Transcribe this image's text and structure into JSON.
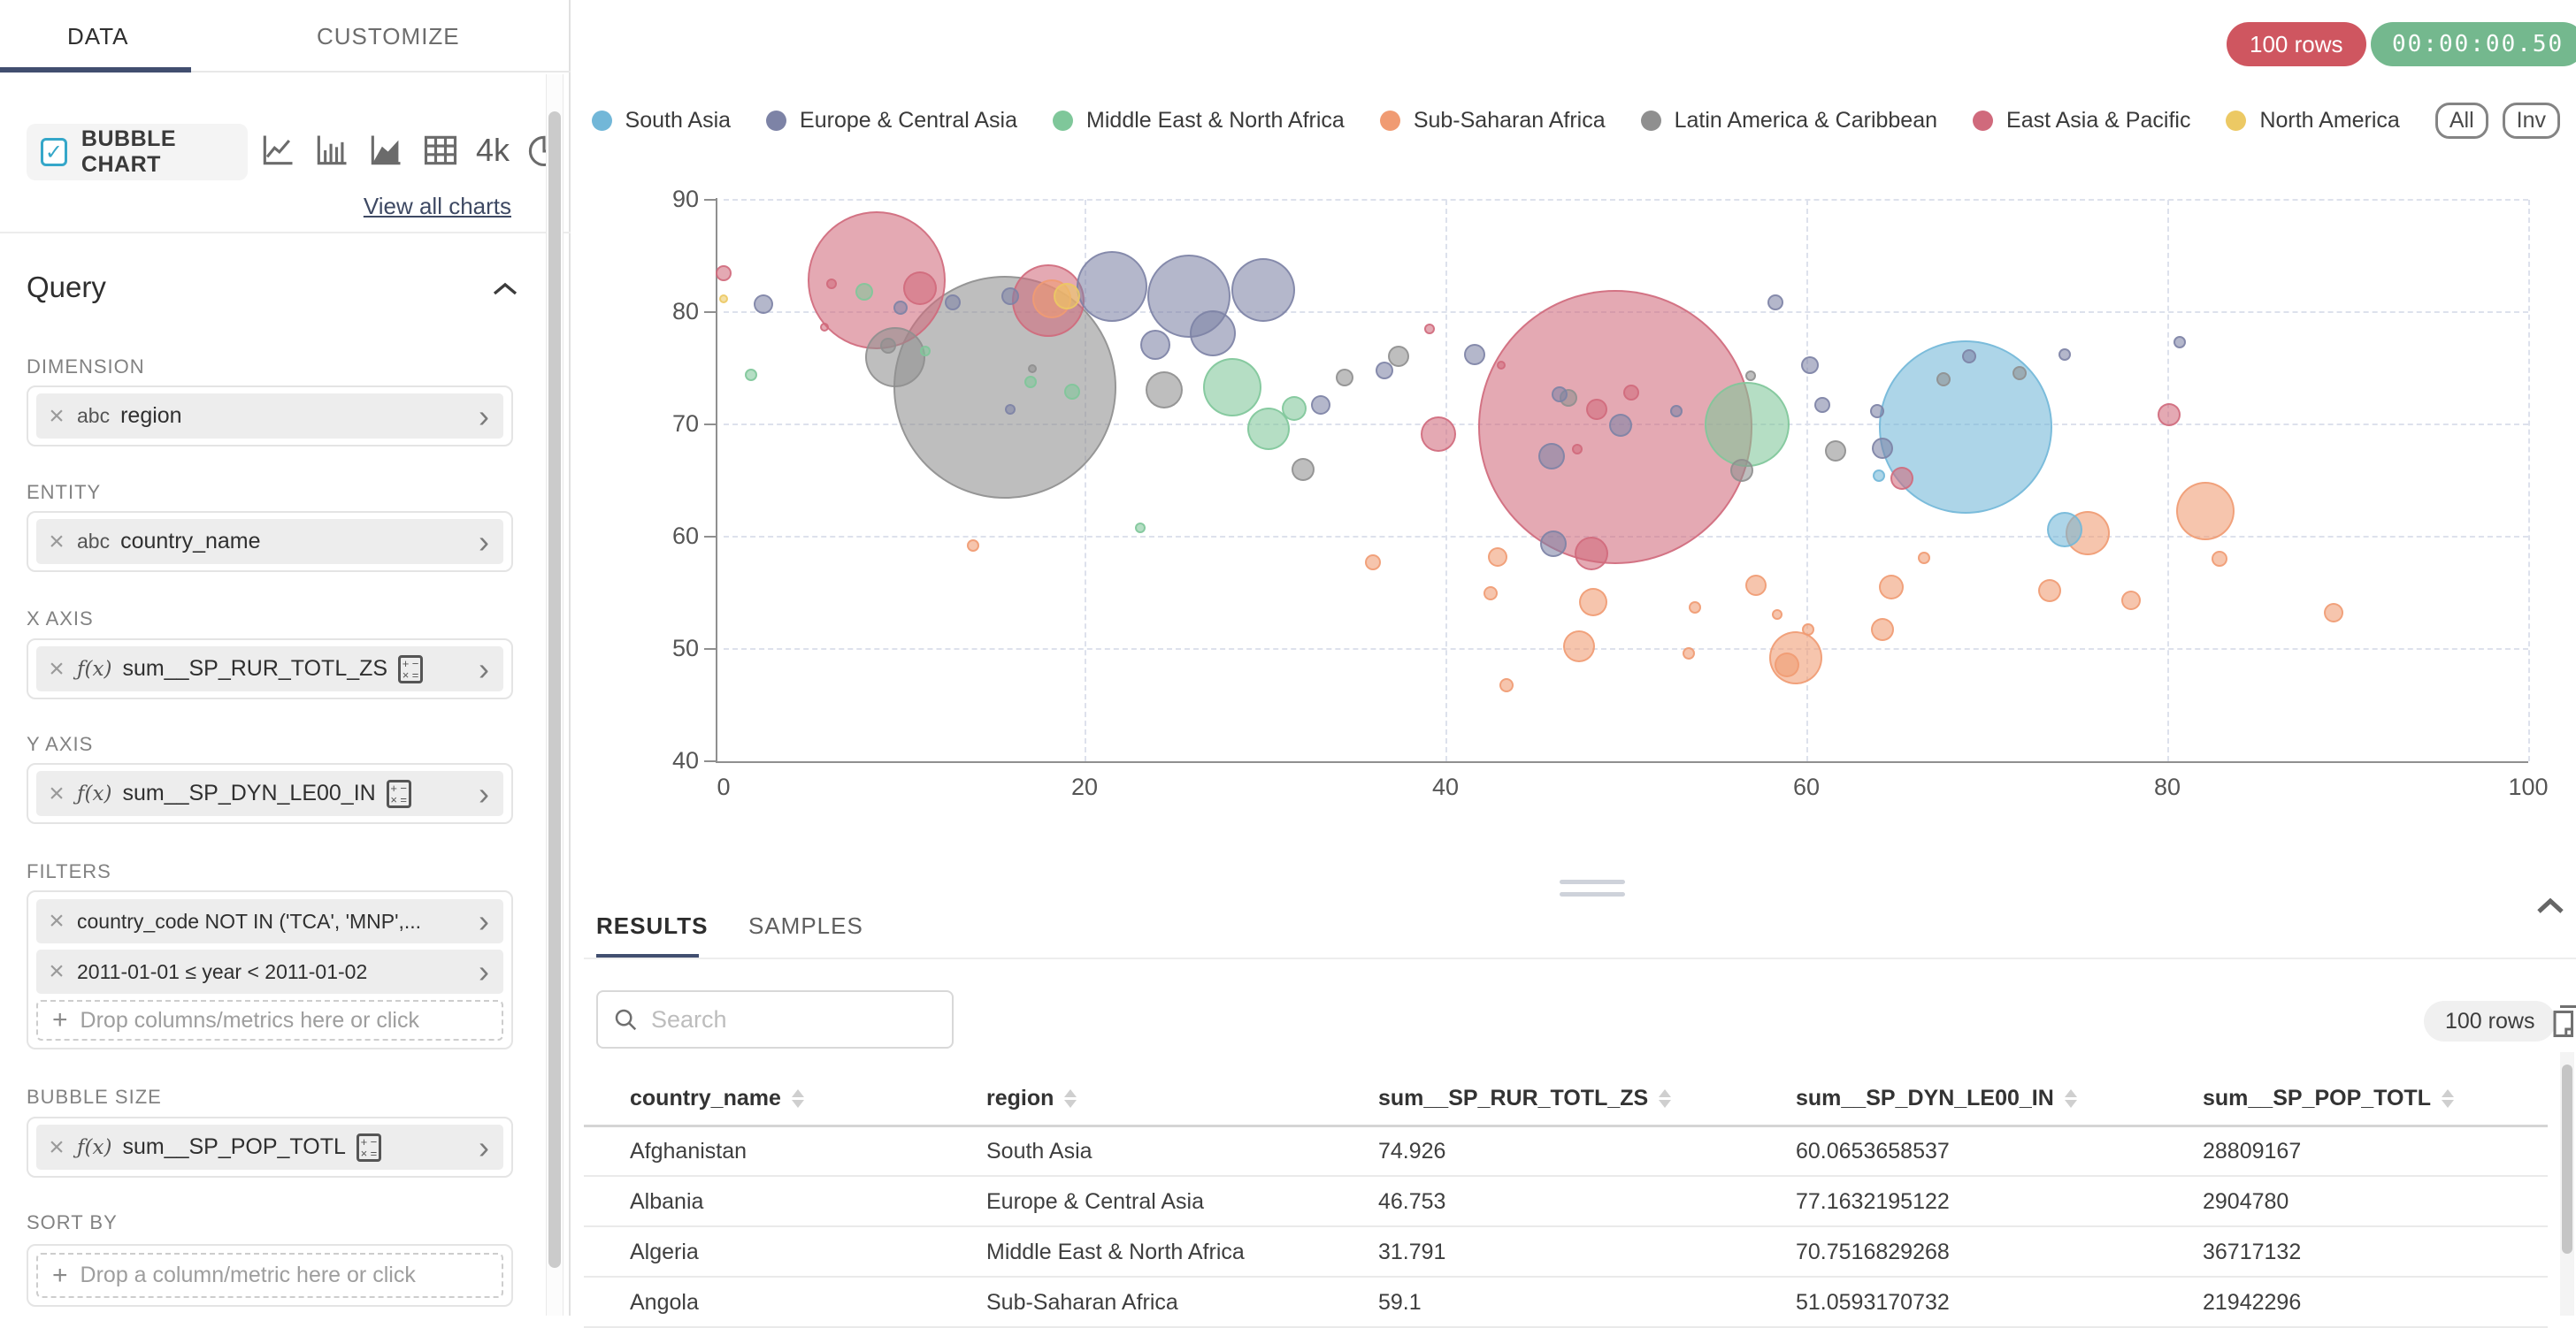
{
  "toolbar": {
    "rows_badge": "100 rows",
    "timer_badge": "00:00:00.50",
    "rows_badge_color": "#cf5660",
    "timer_badge_color": "#74b88e"
  },
  "sidebar": {
    "tabs": [
      {
        "label": "DATA"
      },
      {
        "label": "CUSTOMIZE"
      }
    ],
    "chart_selector": {
      "selected_label": "BUBBLE CHART",
      "checkbox_checked": true,
      "view_all_label": "View all charts",
      "big_number_label": "4k",
      "icons": [
        "line-chart-icon",
        "bar-chart-icon",
        "area-chart-icon",
        "table-chart-icon",
        "big-number-chart-icon",
        "pie-chart-icon"
      ]
    },
    "query": {
      "title": "Query",
      "dimension": {
        "label": "DIMENSION",
        "prefix": "abc",
        "value": "region"
      },
      "entity": {
        "label": "ENTITY",
        "prefix": "abc",
        "value": "country_name"
      },
      "x_axis": {
        "label": "X AXIS",
        "prefix": "ƒ(x)",
        "value": "sum__SP_RUR_TOTL_ZS"
      },
      "y_axis": {
        "label": "Y AXIS",
        "prefix": "ƒ(x)",
        "value": "sum__SP_DYN_LE00_IN"
      },
      "filters": {
        "label": "FILTERS",
        "items": [
          "country_code NOT IN ('TCA', 'MNP',...",
          "2011-01-01 ≤ year < 2011-01-02"
        ],
        "drop_placeholder": "Drop columns/metrics here or click"
      },
      "bubble_size": {
        "label": "BUBBLE SIZE",
        "prefix": "ƒ(x)",
        "value": "sum__SP_POP_TOTL"
      },
      "sort_by": {
        "label": "SORT BY",
        "drop_placeholder": "Drop a column/metric here or click"
      }
    }
  },
  "legend": {
    "buttons": [
      "All",
      "Inv"
    ]
  },
  "chart_data": {
    "type": "scatter",
    "subtype": "bubble",
    "title": "",
    "xlabel": "sum__SP_RUR_TOTL_ZS",
    "ylabel": "sum__SP_DYN_LE00_IN",
    "size_metric": "sum__SP_POP_TOTL",
    "xlim": [
      0,
      100
    ],
    "ylim": [
      40,
      90
    ],
    "x_ticks": [
      0,
      20,
      40,
      60,
      80,
      100
    ],
    "y_ticks": [
      40,
      50,
      60,
      70,
      80,
      90
    ],
    "grid": "dashed",
    "legend_position": "top",
    "point_format": "[x, y, radius_px]",
    "series": [
      {
        "name": "South Asia",
        "color": "#72b7d8",
        "points": [
          [
            68.8,
            69.8,
            98
          ],
          [
            64.0,
            65.4,
            7
          ],
          [
            74.3,
            60.6,
            20
          ]
        ]
      },
      {
        "name": "Europe & Central Asia",
        "color": "#7d83a6",
        "points": [
          [
            2.2,
            80.7,
            11
          ],
          [
            9.8,
            80.4,
            8
          ],
          [
            12.7,
            80.9,
            9
          ],
          [
            15.9,
            81.4,
            10
          ],
          [
            21.5,
            82.3,
            40
          ],
          [
            25.8,
            81.4,
            47
          ],
          [
            29.9,
            82.0,
            36
          ],
          [
            27.1,
            78.1,
            26
          ],
          [
            23.9,
            77.1,
            17
          ],
          [
            15.9,
            71.3,
            6
          ],
          [
            33.1,
            71.7,
            11
          ],
          [
            36.6,
            74.8,
            10
          ],
          [
            41.6,
            76.2,
            12
          ],
          [
            45.9,
            67.2,
            15
          ],
          [
            46.3,
            72.7,
            9
          ],
          [
            49.7,
            69.9,
            13
          ],
          [
            46.0,
            59.4,
            15
          ],
          [
            52.8,
            71.2,
            7
          ],
          [
            58.3,
            80.9,
            9
          ],
          [
            60.2,
            75.3,
            10
          ],
          [
            60.9,
            71.7,
            9
          ],
          [
            63.9,
            71.2,
            8
          ],
          [
            64.2,
            67.9,
            12
          ],
          [
            69.0,
            76.1,
            8
          ],
          [
            74.3,
            76.2,
            7
          ],
          [
            80.7,
            77.3,
            7
          ]
        ]
      },
      {
        "name": "Middle East & North Africa",
        "color": "#7fc79a",
        "points": [
          [
            1.5,
            74.4,
            7
          ],
          [
            7.8,
            81.8,
            10
          ],
          [
            11.2,
            76.5,
            6
          ],
          [
            17.0,
            73.8,
            7
          ],
          [
            19.3,
            72.9,
            9
          ],
          [
            23.1,
            60.8,
            6
          ],
          [
            28.2,
            73.3,
            33
          ],
          [
            30.2,
            69.6,
            24
          ],
          [
            31.6,
            71.4,
            14
          ],
          [
            56.7,
            70.0,
            48
          ]
        ]
      },
      {
        "name": "Sub-Saharan Africa",
        "color": "#f09b72",
        "points": [
          [
            18.2,
            81.2,
            22
          ],
          [
            13.8,
            59.2,
            7
          ],
          [
            36.0,
            57.7,
            9
          ],
          [
            42.5,
            55.0,
            8
          ],
          [
            42.9,
            58.2,
            11
          ],
          [
            43.4,
            46.8,
            8
          ],
          [
            48.2,
            54.2,
            16
          ],
          [
            47.4,
            50.2,
            18
          ],
          [
            53.5,
            49.6,
            7
          ],
          [
            53.8,
            53.7,
            7
          ],
          [
            57.2,
            55.7,
            12
          ],
          [
            58.4,
            53.1,
            6
          ],
          [
            59.4,
            49.2,
            30
          ],
          [
            58.9,
            48.6,
            14
          ],
          [
            60.1,
            51.7,
            7
          ],
          [
            64.2,
            51.7,
            13
          ],
          [
            64.7,
            55.5,
            14
          ],
          [
            66.5,
            58.1,
            7
          ],
          [
            75.6,
            60.3,
            25
          ],
          [
            73.5,
            55.2,
            13
          ],
          [
            82.1,
            62.3,
            33
          ],
          [
            78.0,
            54.3,
            11
          ],
          [
            82.9,
            58.0,
            9
          ],
          [
            89.2,
            53.2,
            11
          ]
        ]
      },
      {
        "name": "Latin America & Caribbean",
        "color": "#8f8f8f",
        "points": [
          [
            15.6,
            73.3,
            126
          ],
          [
            9.5,
            76.0,
            34
          ],
          [
            9.1,
            77.0,
            9
          ],
          [
            17.1,
            75.0,
            5
          ],
          [
            24.4,
            73.1,
            21
          ],
          [
            32.1,
            66.0,
            13
          ],
          [
            34.4,
            74.2,
            10
          ],
          [
            37.4,
            76.1,
            12
          ],
          [
            46.8,
            72.4,
            10
          ],
          [
            56.9,
            74.3,
            6
          ],
          [
            56.4,
            65.9,
            13
          ],
          [
            61.6,
            67.6,
            12
          ],
          [
            67.6,
            74.0,
            8
          ],
          [
            71.8,
            74.6,
            8
          ]
        ]
      },
      {
        "name": "East Asia & Pacific",
        "color": "#d06a7c",
        "points": [
          [
            0.0,
            83.5,
            9
          ],
          [
            5.6,
            78.7,
            5
          ],
          [
            6.0,
            82.5,
            6
          ],
          [
            8.5,
            82.8,
            78
          ],
          [
            10.9,
            82.1,
            19
          ],
          [
            18.0,
            81.0,
            41
          ],
          [
            39.1,
            78.5,
            6
          ],
          [
            39.6,
            69.1,
            20
          ],
          [
            43.1,
            75.3,
            5
          ],
          [
            47.3,
            67.8,
            6
          ],
          [
            48.4,
            71.3,
            12
          ],
          [
            50.3,
            72.8,
            9
          ],
          [
            49.4,
            69.8,
            155
          ],
          [
            48.1,
            58.5,
            19
          ],
          [
            65.3,
            65.2,
            13
          ],
          [
            80.1,
            70.9,
            13
          ]
        ]
      },
      {
        "name": "North America",
        "color": "#ecc964",
        "points": [
          [
            0.0,
            81.2,
            5
          ],
          [
            19.0,
            81.4,
            15
          ]
        ]
      }
    ]
  },
  "results": {
    "tabs": [
      {
        "label": "RESULTS"
      },
      {
        "label": "SAMPLES"
      }
    ],
    "search_placeholder": "Search",
    "rows_badge": "100 rows",
    "table": {
      "columns": [
        "country_name",
        "region",
        "sum__SP_RUR_TOTL_ZS",
        "sum__SP_DYN_LE00_IN",
        "sum__SP_POP_TOTL"
      ],
      "rows": [
        [
          "Afghanistan",
          "South Asia",
          "74.926",
          "60.0653658537",
          "28809167"
        ],
        [
          "Albania",
          "Europe & Central Asia",
          "46.753",
          "77.1632195122",
          "2904780"
        ],
        [
          "Algeria",
          "Middle East & North Africa",
          "31.791",
          "70.7516829268",
          "36717132"
        ],
        [
          "Angola",
          "Sub-Saharan Africa",
          "59.1",
          "51.0593170732",
          "21942296"
        ]
      ]
    }
  }
}
